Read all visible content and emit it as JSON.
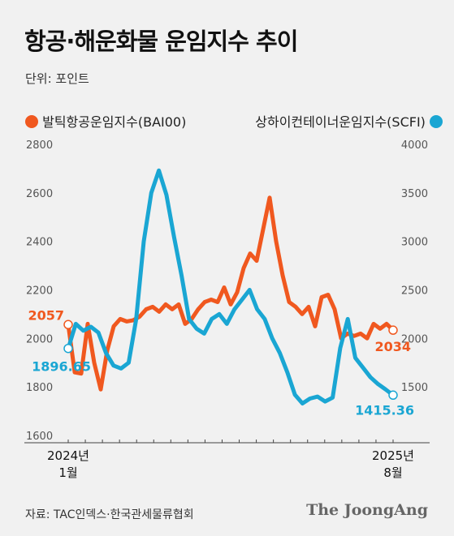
{
  "title": "항공·해운화물 운임지수 추이",
  "unit_label": "단위: 포인트",
  "source": "자료: TAC인덱스·한국관세물류협회",
  "brand": "The JoongAng",
  "colors": {
    "bai": "#f0581f",
    "scfi": "#1aa6d3",
    "axis": "#444444"
  },
  "chart_data": {
    "type": "line",
    "x_labels": [
      {
        "line1": "2024년",
        "line2": "1월",
        "at": "start"
      },
      {
        "line1": "2025년",
        "line2": "8월",
        "at": "end"
      }
    ],
    "y_left": {
      "ticks": [
        "2800",
        "2600",
        "2400",
        "2200",
        "2000",
        "1800",
        "1600"
      ],
      "range": [
        1600,
        2800
      ]
    },
    "y_right": {
      "ticks": [
        "4000",
        "3500",
        "3000",
        "2500",
        "2000",
        "1500"
      ],
      "range": [
        1000,
        4000
      ]
    },
    "series": [
      {
        "name": "발틱항공운임지수(BAI00)",
        "axis": "left",
        "color": "#f0581f",
        "values": [
          2057,
          1860,
          1855,
          2060,
          1900,
          1790,
          1950,
          2050,
          2080,
          2070,
          2075,
          2090,
          2120,
          2130,
          2110,
          2140,
          2120,
          2140,
          2060,
          2080,
          2120,
          2150,
          2160,
          2150,
          2210,
          2140,
          2190,
          2290,
          2350,
          2320,
          2450,
          2580,
          2400,
          2260,
          2150,
          2130,
          2100,
          2130,
          2050,
          2170,
          2180,
          2120,
          2000,
          2020,
          2010,
          2020,
          2000,
          2060,
          2040,
          2060,
          2034
        ],
        "start_label": "2057",
        "end_label": "2034"
      },
      {
        "name": "상하이컨테이너운임지수(SCFI)",
        "axis": "right",
        "color": "#1aa6d3",
        "values": [
          1896.65,
          2150,
          2080,
          2120,
          2060,
          1850,
          1720,
          1690,
          1750,
          2200,
          3000,
          3500,
          3730,
          3480,
          3050,
          2650,
          2200,
          2100,
          2050,
          2200,
          2250,
          2150,
          2300,
          2400,
          2500,
          2300,
          2200,
          2000,
          1850,
          1650,
          1420,
          1330,
          1380,
          1400,
          1350,
          1390,
          1900,
          2200,
          1800,
          1700,
          1600,
          1530,
          1475,
          1415.36
        ],
        "start_label": "1896.65",
        "end_label": "1415.36"
      }
    ],
    "grid": false,
    "legend": "top"
  }
}
